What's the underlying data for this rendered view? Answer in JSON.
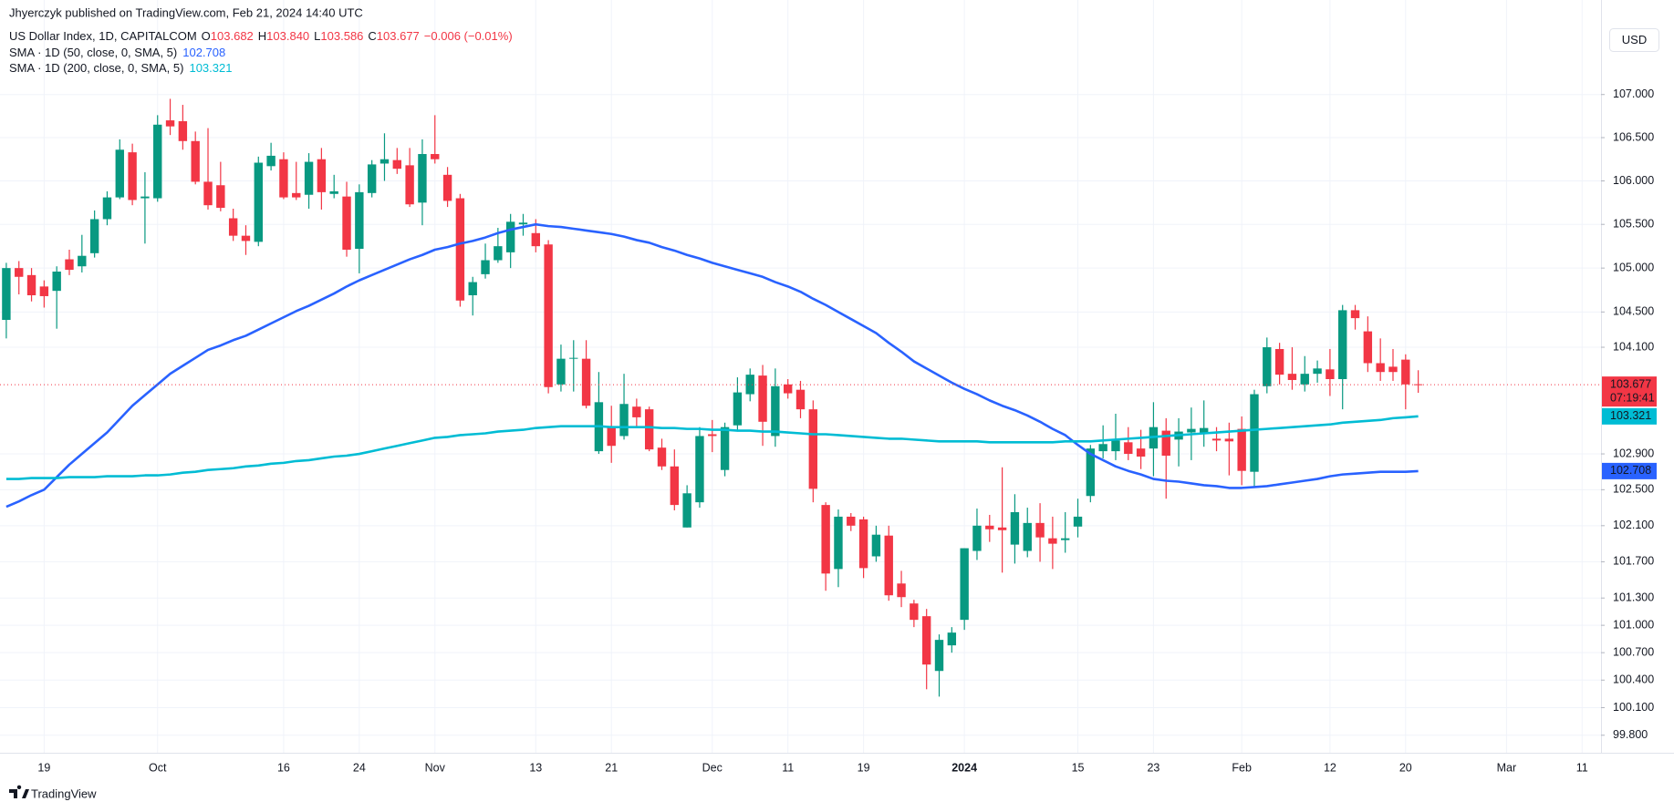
{
  "chart_data": {
    "type": "candlestick",
    "published": "Jhyerczyk published on TradingView.com, Feb 21, 2024 14:40 UTC",
    "symbol": "US Dollar Index, 1D, CAPITALCOM",
    "legend_ohlc": [
      "O",
      "103.682",
      "H",
      "103.840",
      "L",
      "103.586",
      "C",
      "103.677",
      "−0.006 (−0.01%)"
    ],
    "currency": "USD",
    "last_price_label": "103.677",
    "countdown": "07:19:41",
    "brand": "TradingView",
    "log_scale": true,
    "grid": true,
    "up_color": "#089981",
    "down_color": "#f23645",
    "ylim": [
      99.61,
      107.87
    ],
    "yticks": [
      {
        "value": 107,
        "label": "107.000"
      },
      {
        "value": 106.5,
        "label": "106.500"
      },
      {
        "value": 106,
        "label": "106.000"
      },
      {
        "value": 105.5,
        "label": "105.500"
      },
      {
        "value": 105,
        "label": "105.000"
      },
      {
        "value": 104.5,
        "label": "104.500"
      },
      {
        "value": 104.1,
        "label": "104.100"
      },
      {
        "value": 102.9,
        "label": "102.900"
      },
      {
        "value": 102.5,
        "label": "102.500"
      },
      {
        "value": 102.1,
        "label": "102.100"
      },
      {
        "value": 101.7,
        "label": "101.700"
      },
      {
        "value": 101.3,
        "label": "101.300"
      },
      {
        "value": 101,
        "label": "101.000"
      },
      {
        "value": 100.7,
        "label": "100.700"
      },
      {
        "value": 100.4,
        "label": "100.400"
      },
      {
        "value": 100.1,
        "label": "100.100"
      },
      {
        "value": 99.8,
        "label": "99.800"
      }
    ],
    "categories": [
      null,
      null,
      null,
      "19",
      null,
      null,
      null,
      null,
      null,
      null,
      null,
      null,
      "Oct",
      null,
      null,
      null,
      null,
      null,
      null,
      null,
      null,
      null,
      "16",
      null,
      null,
      null,
      null,
      null,
      "24",
      null,
      null,
      null,
      null,
      null,
      "Nov",
      null,
      null,
      null,
      null,
      null,
      null,
      null,
      "13",
      null,
      null,
      null,
      null,
      null,
      "21",
      null,
      null,
      null,
      null,
      null,
      null,
      null,
      "Dec",
      null,
      null,
      null,
      null,
      null,
      "11",
      null,
      null,
      null,
      null,
      null,
      "19",
      null,
      null,
      null,
      null,
      null,
      null,
      null,
      "2024",
      null,
      null,
      null,
      null,
      null,
      null,
      null,
      null,
      "15",
      null,
      null,
      null,
      null,
      null,
      "23",
      null,
      null,
      null,
      null,
      null,
      null,
      "Feb",
      null,
      null,
      null,
      null,
      null,
      null,
      "12",
      null,
      null,
      null,
      null,
      null,
      "20",
      null,
      null,
      null,
      null,
      null,
      null,
      null,
      "Mar",
      null,
      null,
      null,
      null,
      null,
      "11",
      null
    ],
    "open": [
      104.41,
      105.0,
      104.92,
      104.79,
      104.74,
      105.1,
      105.02,
      105.17,
      105.56,
      105.81,
      106.33,
      105.8,
      105.8,
      106.7,
      106.69,
      106.46,
      105.99,
      105.95,
      105.57,
      105.37,
      105.3,
      106.17,
      106.25,
      105.86,
      105.84,
      106.25,
      105.85,
      105.82,
      105.22,
      105.86,
      106.2,
      106.24,
      106.18,
      105.75,
      106.31,
      106.07,
      105.8,
      104.69,
      104.93,
      105.09,
      105.18,
      105.5,
      105.4,
      105.27,
      103.68,
      103.97,
      103.97,
      102.93,
      103.2,
      103.1,
      103.43,
      103.4,
      102.97,
      102.76,
      102.08,
      102.36,
      103.12,
      102.72,
      103.22,
      103.57,
      103.78,
      103.1,
      103.68,
      103.62,
      103.4,
      102.33,
      101.62,
      102.2,
      102.17,
      101.76,
      101.99,
      101.46,
      101.24,
      101.1,
      100.5,
      100.78,
      101.06,
      101.82,
      102.1,
      102.08,
      101.89,
      101.82,
      102.13,
      101.96,
      101.94,
      102.09,
      102.43,
      102.93,
      102.93,
      103.03,
      102.96,
      102.96,
      103.16,
      103.06,
      103.14,
      103.14,
      103.07,
      103.07,
      103.18,
      102.7,
      103.66,
      104.08,
      103.8,
      103.68,
      103.8,
      103.85,
      103.74,
      104.52,
      104.28,
      103.92,
      103.88,
      103.96,
      103.682,
      null,
      null,
      null,
      null,
      null,
      null,
      null,
      null,
      null,
      null,
      null,
      null,
      null,
      null
    ],
    "high": [
      105.06,
      105.08,
      105.0,
      104.86,
      105.02,
      105.21,
      105.38,
      105.66,
      105.88,
      106.48,
      106.43,
      106.1,
      106.76,
      106.95,
      106.88,
      106.57,
      106.61,
      106.22,
      105.68,
      105.49,
      106.28,
      106.44,
      106.33,
      106.22,
      106.32,
      106.38,
      106.07,
      105.99,
      105.96,
      106.24,
      106.55,
      106.38,
      106.38,
      106.48,
      106.76,
      106.16,
      105.85,
      104.9,
      105.28,
      105.46,
      105.62,
      105.62,
      105.56,
      105.32,
      104.13,
      104.18,
      104.18,
      103.82,
      103.44,
      103.8,
      103.52,
      103.43,
      103.07,
      102.95,
      102.55,
      103.2,
      103.28,
      103.25,
      103.76,
      103.86,
      103.9,
      103.86,
      103.74,
      103.72,
      103.5,
      102.36,
      102.28,
      102.24,
      102.2,
      102.1,
      102.1,
      101.6,
      101.28,
      101.18,
      100.9,
      100.98,
      101.85,
      102.29,
      102.22,
      102.75,
      102.45,
      102.3,
      102.35,
      102.2,
      102.25,
      102.4,
      103.0,
      103.22,
      103.35,
      103.2,
      103.17,
      103.48,
      103.3,
      103.3,
      103.42,
      103.5,
      103.2,
      103.25,
      103.32,
      103.62,
      104.21,
      104.15,
      104.1,
      104.0,
      103.95,
      104.08,
      104.58,
      104.58,
      104.45,
      104.2,
      104.08,
      104.02,
      103.84,
      null,
      null,
      null,
      null,
      null,
      null,
      null,
      null,
      null,
      null,
      null,
      null,
      null,
      null
    ],
    "low": [
      104.2,
      104.7,
      104.62,
      104.55,
      104.31,
      104.92,
      104.95,
      105.12,
      105.49,
      105.79,
      105.72,
      105.28,
      105.76,
      106.53,
      106.36,
      105.96,
      105.67,
      105.65,
      105.31,
      105.15,
      105.25,
      106.12,
      105.79,
      105.78,
      105.68,
      105.67,
      105.8,
      105.13,
      104.94,
      105.81,
      106.0,
      106.08,
      105.7,
      105.49,
      106.2,
      105.7,
      104.56,
      104.46,
      104.88,
      105.06,
      105.0,
      105.37,
      105.18,
      103.58,
      103.6,
      103.6,
      103.41,
      102.9,
      102.8,
      103.06,
      103.2,
      102.93,
      102.72,
      102.27,
      102.08,
      102.3,
      102.92,
      102.65,
      103.15,
      103.49,
      102.99,
      102.98,
      103.52,
      103.3,
      102.36,
      101.38,
      101.42,
      102.04,
      101.52,
      101.7,
      101.27,
      101.2,
      100.98,
      100.3,
      100.22,
      100.7,
      100.95,
      101.72,
      101.92,
      101.58,
      101.68,
      101.75,
      101.7,
      101.62,
      101.8,
      101.97,
      102.36,
      102.85,
      102.83,
      102.83,
      102.73,
      102.65,
      102.4,
      102.76,
      102.83,
      102.98,
      102.93,
      102.66,
      102.55,
      102.52,
      103.58,
      103.68,
      103.62,
      103.6,
      103.7,
      103.55,
      103.4,
      104.3,
      103.82,
      103.72,
      103.72,
      103.4,
      103.586,
      null,
      null,
      null,
      null,
      null,
      null,
      null,
      null,
      null,
      null,
      null,
      null,
      null,
      null
    ],
    "close": [
      105.0,
      104.9,
      104.69,
      104.68,
      104.96,
      104.98,
      105.14,
      105.56,
      105.81,
      106.36,
      105.78,
      105.82,
      106.65,
      106.63,
      106.46,
      105.99,
      105.72,
      105.69,
      105.37,
      105.31,
      106.21,
      106.29,
      105.81,
      105.81,
      106.22,
      105.87,
      105.88,
      105.21,
      105.87,
      106.19,
      106.25,
      106.14,
      105.73,
      106.31,
      106.25,
      105.77,
      104.63,
      104.84,
      105.09,
      105.25,
      105.53,
      105.52,
      105.25,
      103.65,
      103.97,
      103.98,
      103.44,
      103.48,
      102.99,
      103.46,
      103.31,
      102.95,
      102.76,
      102.33,
      102.46,
      103.1,
      103.1,
      103.2,
      103.59,
      103.79,
      103.26,
      103.66,
      103.58,
      103.4,
      102.51,
      101.57,
      102.2,
      102.1,
      101.63,
      102.0,
      101.33,
      101.31,
      101.06,
      100.57,
      100.84,
      100.92,
      101.85,
      102.1,
      102.06,
      102.05,
      102.25,
      102.13,
      101.97,
      101.9,
      101.96,
      102.2,
      102.96,
      103.01,
      103.05,
      102.9,
      102.87,
      103.2,
      102.88,
      103.15,
      103.18,
      103.19,
      103.05,
      103.04,
      102.71,
      103.57,
      104.1,
      103.79,
      103.73,
      103.8,
      103.86,
      103.74,
      104.52,
      104.43,
      103.92,
      103.82,
      103.82,
      103.68,
      103.677,
      null,
      null,
      null,
      null,
      null,
      null,
      null,
      null,
      null,
      null,
      null,
      null,
      null,
      null
    ],
    "series": [
      {
        "name": "SMA · 1D (50, close, 0, SMA, 5)",
        "color": "#2962ff",
        "value_label": "102.708",
        "values": [
          102.31,
          102.37,
          102.44,
          102.5,
          102.64,
          102.78,
          102.9,
          103.02,
          103.14,
          103.29,
          103.44,
          103.56,
          103.68,
          103.8,
          103.89,
          103.98,
          104.07,
          104.12,
          104.18,
          104.23,
          104.3,
          104.37,
          104.44,
          104.51,
          104.57,
          104.64,
          104.71,
          104.79,
          104.86,
          104.92,
          104.98,
          105.04,
          105.1,
          105.15,
          105.21,
          105.24,
          105.28,
          105.31,
          105.35,
          105.4,
          105.44,
          105.47,
          105.5,
          105.48,
          105.47,
          105.45,
          105.43,
          105.41,
          105.39,
          105.36,
          105.32,
          105.29,
          105.24,
          105.2,
          105.15,
          105.11,
          105.06,
          105.02,
          104.98,
          104.94,
          104.9,
          104.84,
          104.79,
          104.73,
          104.65,
          104.58,
          104.5,
          104.42,
          104.34,
          104.26,
          104.15,
          104.05,
          103.94,
          103.86,
          103.78,
          103.7,
          103.63,
          103.57,
          103.5,
          103.44,
          103.39,
          103.33,
          103.26,
          103.18,
          103.11,
          103.0,
          102.9,
          102.83,
          102.76,
          102.71,
          102.67,
          102.62,
          102.6,
          102.59,
          102.57,
          102.55,
          102.54,
          102.52,
          102.52,
          102.53,
          102.54,
          102.56,
          102.58,
          102.6,
          102.62,
          102.65,
          102.67,
          102.68,
          102.69,
          102.7,
          102.7,
          102.7,
          102.708,
          null,
          null,
          null,
          null,
          null,
          null,
          null,
          null,
          null,
          null,
          null,
          null,
          null,
          null
        ]
      },
      {
        "name": "SMA · 1D (200, close, 0, SMA, 5)",
        "color": "#00bcd4",
        "value_label": "103.321",
        "values": [
          102.62,
          102.62,
          102.63,
          102.63,
          102.63,
          102.64,
          102.64,
          102.64,
          102.65,
          102.65,
          102.65,
          102.66,
          102.66,
          102.67,
          102.69,
          102.7,
          102.72,
          102.73,
          102.74,
          102.76,
          102.77,
          102.79,
          102.8,
          102.82,
          102.83,
          102.85,
          102.87,
          102.88,
          102.9,
          102.93,
          102.96,
          102.99,
          103.02,
          103.05,
          103.08,
          103.09,
          103.11,
          103.12,
          103.13,
          103.15,
          103.16,
          103.17,
          103.19,
          103.2,
          103.21,
          103.21,
          103.21,
          103.21,
          103.2,
          103.2,
          103.2,
          103.2,
          103.19,
          103.19,
          103.18,
          103.18,
          103.17,
          103.17,
          103.16,
          103.16,
          103.15,
          103.15,
          103.14,
          103.13,
          103.12,
          103.12,
          103.11,
          103.1,
          103.09,
          103.08,
          103.07,
          103.07,
          103.06,
          103.05,
          103.04,
          103.04,
          103.04,
          103.04,
          103.03,
          103.03,
          103.03,
          103.03,
          103.03,
          103.03,
          103.04,
          103.04,
          103.04,
          103.05,
          103.06,
          103.07,
          103.08,
          103.09,
          103.1,
          103.11,
          103.12,
          103.13,
          103.14,
          103.15,
          103.16,
          103.17,
          103.18,
          103.19,
          103.2,
          103.21,
          103.22,
          103.23,
          103.25,
          103.26,
          103.27,
          103.28,
          103.3,
          103.31,
          103.321,
          null,
          null,
          null,
          null,
          null,
          null,
          null,
          null,
          null,
          null,
          null,
          null,
          null,
          null
        ]
      }
    ]
  }
}
